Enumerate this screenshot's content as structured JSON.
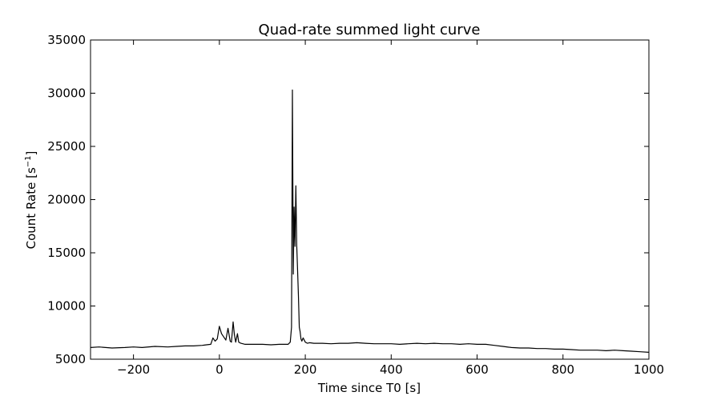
{
  "chart_data": {
    "type": "line",
    "title": "Quad-rate summed light curve",
    "xlabel": "Time since T0 [s]",
    "ylabel_main": "Count Rate [s",
    "ylabel_sup": "−1",
    "ylabel_end": "]",
    "xlim": [
      -300,
      1000
    ],
    "ylim": [
      5000,
      35000
    ],
    "xticks": [
      -200,
      0,
      200,
      400,
      600,
      800,
      1000
    ],
    "xtick_labels": [
      "−200",
      "0",
      "200",
      "400",
      "600",
      "800",
      "1000"
    ],
    "yticks": [
      5000,
      10000,
      15000,
      20000,
      25000,
      30000,
      35000
    ],
    "ytick_labels": [
      "5000",
      "10000",
      "15000",
      "20000",
      "25000",
      "30000",
      "35000"
    ],
    "grid": false,
    "line_color": "#000000",
    "series": [
      {
        "x": [
          -300,
          -280,
          -250,
          -220,
          -200,
          -180,
          -150,
          -120,
          -100,
          -80,
          -60,
          -40,
          -30,
          -20,
          -15,
          -10,
          -5,
          0,
          5,
          10,
          15,
          20,
          25,
          28,
          32,
          35,
          38,
          42,
          45,
          50,
          60,
          80,
          100,
          120,
          140,
          160,
          165,
          168,
          170,
          172,
          174,
          176,
          178,
          180,
          182,
          184,
          186,
          188,
          190,
          192,
          195,
          200,
          205,
          210,
          220,
          240,
          260,
          280,
          300,
          320,
          340,
          360,
          380,
          400,
          420,
          440,
          460,
          480,
          500,
          520,
          540,
          560,
          580,
          600,
          620,
          640,
          660,
          680,
          700,
          720,
          740,
          760,
          780,
          800,
          820,
          840,
          860,
          880,
          900,
          920,
          940,
          960,
          980,
          1000
        ],
        "y": [
          6100,
          6150,
          6050,
          6100,
          6150,
          6100,
          6200,
          6150,
          6200,
          6250,
          6250,
          6300,
          6350,
          6400,
          7000,
          6700,
          6900,
          8100,
          7400,
          7100,
          6800,
          7900,
          6700,
          6600,
          8500,
          7300,
          6600,
          7400,
          6600,
          6500,
          6400,
          6400,
          6400,
          6350,
          6400,
          6400,
          6600,
          8000,
          30300,
          13000,
          19300,
          15600,
          21300,
          15700,
          13500,
          11000,
          8000,
          7600,
          6900,
          6700,
          7000,
          6600,
          6500,
          6550,
          6500,
          6500,
          6450,
          6500,
          6500,
          6550,
          6500,
          6450,
          6450,
          6450,
          6400,
          6450,
          6500,
          6450,
          6500,
          6450,
          6450,
          6400,
          6450,
          6400,
          6400,
          6300,
          6200,
          6100,
          6050,
          6050,
          6000,
          6000,
          5950,
          5950,
          5900,
          5850,
          5850,
          5850,
          5800,
          5850,
          5800,
          5750,
          5700,
          5650
        ]
      }
    ]
  }
}
